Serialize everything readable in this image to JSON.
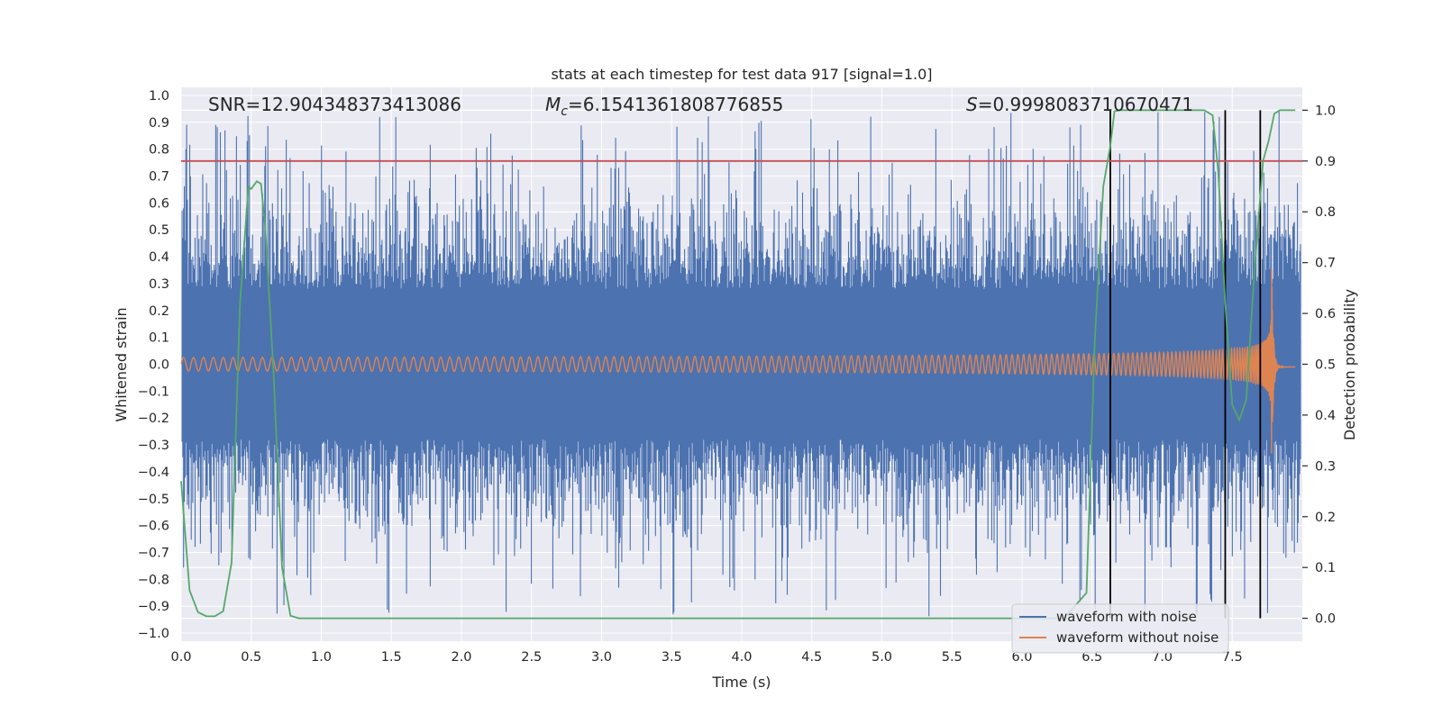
{
  "chart_data": {
    "type": "line",
    "title": "stats at each timestep for test data 917 [signal=1.0]",
    "xlabel": "Time (s)",
    "ylabel": "Whitened strain",
    "ylabel_right": "Detection probability",
    "xlim": [
      0.0,
      8.0
    ],
    "ylim": [
      -1.03,
      1.03
    ],
    "ylim_right": [
      -0.045,
      1.045
    ],
    "x_ticks": [
      0.0,
      0.5,
      1.0,
      1.5,
      2.0,
      2.5,
      3.0,
      3.5,
      4.0,
      4.5,
      5.0,
      5.5,
      6.0,
      6.5,
      7.0,
      7.5
    ],
    "x_tick_labels": [
      "0.0",
      "0.5",
      "1.0",
      "1.5",
      "2.0",
      "2.5",
      "3.0",
      "3.5",
      "4.0",
      "4.5",
      "5.0",
      "5.5",
      "6.0",
      "6.5",
      "7.0",
      "7.5"
    ],
    "y_ticks": [
      1.0,
      0.9,
      0.8,
      0.7,
      0.6,
      0.5,
      0.4,
      0.3,
      0.2,
      0.1,
      0.0,
      -0.1,
      -0.2,
      -0.3,
      -0.4,
      -0.5,
      -0.6,
      -0.7,
      -0.8,
      -0.9,
      -1.0
    ],
    "y_tick_labels": [
      "1.0",
      "0.9",
      "0.8",
      "0.7",
      "0.6",
      "0.5",
      "0.4",
      "0.3",
      "0.2",
      "0.1",
      "0.0",
      "−0.1",
      "−0.2",
      "−0.3",
      "−0.4",
      "−0.5",
      "−0.6",
      "−0.7",
      "−0.8",
      "−0.9",
      "−1.0"
    ],
    "y_right_ticks": [
      1.0,
      0.9,
      0.8,
      0.7,
      0.6,
      0.5,
      0.4,
      0.3,
      0.2,
      0.1,
      0.0
    ],
    "y_right_tick_labels": [
      "1.0",
      "0.9",
      "0.8",
      "0.7",
      "0.6",
      "0.5",
      "0.4",
      "0.3",
      "0.2",
      "0.1",
      "0.0"
    ],
    "threshold_line": {
      "value": 0.9,
      "axis": "right",
      "color": "#c44e52"
    },
    "event_lines": {
      "x": [
        6.63,
        7.45,
        7.7
      ],
      "color": "#000000"
    },
    "annotations": {
      "snr": "SNR=12.904348373413086",
      "mc_symbol": "M",
      "mc_sub": "c",
      "mc_value": "=6.1541361808776855",
      "s_symbol": "S",
      "s_value": "=0.9998083710670471"
    },
    "series": [
      {
        "name": "waveform with noise",
        "color": "#4c72b0",
        "axis": "left",
        "description": "dense noisy whitened strain, mostly within ±0.6, spikes up to ±1.0",
        "x_range": [
          0.0,
          8.0
        ],
        "typical_amplitude": 0.5,
        "max_abs": 0.95
      },
      {
        "name": "waveform without noise",
        "color": "#dd8452",
        "axis": "left",
        "description": "chirp signal, amplitude growing to ~0.4 near merger at t≈7.78, flat after",
        "x_range": [
          0.0,
          7.95
        ],
        "start_amplitude": 0.025,
        "peak_amplitude": 0.42,
        "merger_time": 7.78
      },
      {
        "name": "detection probability",
        "color": "#55a868",
        "axis": "right",
        "x": [
          0.0,
          0.06,
          0.12,
          0.18,
          0.24,
          0.3,
          0.36,
          0.42,
          0.48,
          0.5,
          0.54,
          0.57,
          0.6,
          0.66,
          0.72,
          0.78,
          0.84,
          0.9,
          1.0,
          2.0,
          3.0,
          4.0,
          5.0,
          6.0,
          6.3,
          6.46,
          6.52,
          6.58,
          6.63,
          6.66,
          6.7,
          7.0,
          7.3,
          7.36,
          7.4,
          7.45,
          7.5,
          7.55,
          7.6,
          7.66,
          7.72,
          7.76,
          7.8,
          7.84,
          7.88,
          7.92,
          7.95
        ],
        "y": [
          0.27,
          0.055,
          0.012,
          0.004,
          0.004,
          0.014,
          0.11,
          0.62,
          0.85,
          0.845,
          0.86,
          0.855,
          0.77,
          0.48,
          0.1,
          0.005,
          0.0,
          0.0,
          0.0,
          0.0,
          0.0,
          0.0,
          0.0,
          0.0,
          0.0,
          0.05,
          0.55,
          0.85,
          0.93,
          0.998,
          1.0,
          1.0,
          1.0,
          0.99,
          0.88,
          0.62,
          0.42,
          0.39,
          0.43,
          0.69,
          0.9,
          0.94,
          0.993,
          1.0,
          1.0,
          1.0,
          1.0
        ]
      }
    ]
  },
  "legend": {
    "items": [
      {
        "label": "waveform with noise",
        "color": "#4c72b0"
      },
      {
        "label": "waveform without noise",
        "color": "#dd8452"
      }
    ],
    "placement": "lower-right"
  }
}
